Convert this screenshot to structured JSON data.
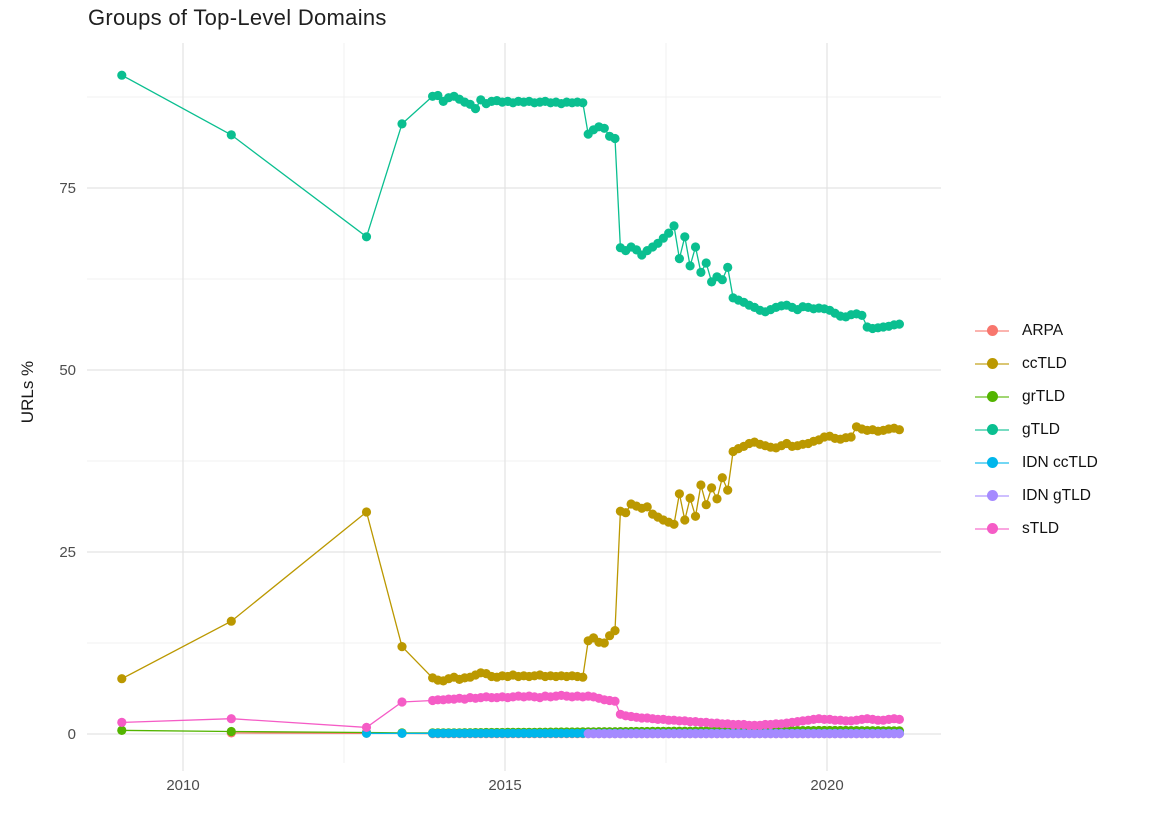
{
  "title": "Groups of Top-Level Domains",
  "y_axis": {
    "label": "URLs %",
    "major_ticks": [
      0,
      25,
      50,
      75
    ],
    "minor_ticks": [
      12.5,
      37.5,
      62.5,
      87.5
    ]
  },
  "x_axis": {
    "major_ticks": [
      2010,
      2015,
      2020
    ],
    "minor_ticks": [
      2012.5,
      2017.5
    ]
  },
  "colors": {
    "major_grid": "#e3e3e3",
    "minor_grid": "#f0f0f0",
    "tick_text": "#4d4d4d",
    "title_text": "#1f1f1f"
  },
  "chart_data": {
    "type": "scatter",
    "title": "Groups of Top-Level Domains",
    "xlabel": "",
    "ylabel": "URLs %",
    "xlim": [
      2008.45,
      2021.8
    ],
    "ylim": [
      -4.5,
      94.8
    ],
    "grid": true,
    "legend_position": "right",
    "x_unit": "year",
    "dense_x": {
      "start": 2013.875,
      "step": 0.083333,
      "count": 88
    },
    "series": [
      {
        "name": "ARPA",
        "color": "#F8766D",
        "sparse": [
          [
            2010.75,
            0.15
          ],
          [
            2012.85,
            0.1
          ],
          [
            2013.4,
            0.1
          ]
        ],
        "dense_const": 0.05,
        "dense_from": 0
      },
      {
        "name": "ccTLD",
        "color": "#BB9800",
        "sparse": [
          [
            2009.05,
            7.6
          ],
          [
            2010.75,
            15.5
          ],
          [
            2012.85,
            30.5
          ],
          [
            2013.4,
            12.0
          ]
        ],
        "dense": [
          7.7,
          7.4,
          7.3,
          7.6,
          7.8,
          7.5,
          7.7,
          7.8,
          8.1,
          8.4,
          8.3,
          7.9,
          7.8,
          8.0,
          7.9,
          8.1,
          7.9,
          8.0,
          7.9,
          8.0,
          8.1,
          7.9,
          8.0,
          7.9,
          8.0,
          7.9,
          8.0,
          7.9,
          7.8,
          12.8,
          13.2,
          12.6,
          12.5,
          13.5,
          14.2,
          30.6,
          30.4,
          31.6,
          31.3,
          31.0,
          31.2,
          30.2,
          29.8,
          29.4,
          29.1,
          28.8,
          33.0,
          29.4,
          32.4,
          29.9,
          34.2,
          31.5,
          33.8,
          32.3,
          35.2,
          33.5,
          38.8,
          39.2,
          39.5,
          39.9,
          40.1,
          39.8,
          39.6,
          39.4,
          39.3,
          39.6,
          39.9,
          39.5,
          39.6,
          39.8,
          39.9,
          40.2,
          40.4,
          40.8,
          40.9,
          40.6,
          40.5,
          40.7,
          40.8,
          42.2,
          41.9,
          41.7,
          41.8,
          41.6,
          41.7,
          41.9,
          42.0,
          41.8
        ]
      },
      {
        "name": "grTLD",
        "color": "#53B400",
        "sparse": [
          [
            2009.05,
            0.5
          ],
          [
            2010.75,
            0.35
          ],
          [
            2012.85,
            0.2
          ],
          [
            2013.4,
            0.15
          ]
        ],
        "dense": [
          0.15,
          0.15,
          0.16,
          0.16,
          0.17,
          0.17,
          0.18,
          0.18,
          0.19,
          0.19,
          0.2,
          0.2,
          0.21,
          0.21,
          0.22,
          0.22,
          0.23,
          0.23,
          0.24,
          0.24,
          0.25,
          0.25,
          0.26,
          0.26,
          0.27,
          0.27,
          0.28,
          0.28,
          0.29,
          0.3,
          0.3,
          0.31,
          0.31,
          0.32,
          0.32,
          0.33,
          0.33,
          0.34,
          0.34,
          0.35,
          0.35,
          0.36,
          0.36,
          0.37,
          0.37,
          0.38,
          0.38,
          0.39,
          0.39,
          0.4,
          0.4,
          0.41,
          0.41,
          0.42,
          0.42,
          0.43,
          0.43,
          0.43,
          0.44,
          0.44,
          0.44,
          0.45,
          0.45,
          0.45,
          0.45,
          0.46,
          0.46,
          0.46,
          0.47,
          0.47,
          0.47,
          0.47,
          0.48,
          0.48,
          0.48,
          0.48,
          0.48,
          0.48,
          0.47,
          0.47,
          0.46,
          0.46,
          0.45,
          0.45,
          0.44,
          0.44,
          0.43,
          0.42
        ]
      },
      {
        "name": "gTLD",
        "color": "#0ABF90",
        "sparse": [
          [
            2009.05,
            90.5
          ],
          [
            2010.75,
            82.3
          ],
          [
            2012.85,
            68.3
          ],
          [
            2013.4,
            83.8
          ]
        ],
        "dense": [
          87.6,
          87.7,
          86.9,
          87.4,
          87.6,
          87.2,
          86.8,
          86.5,
          85.9,
          87.1,
          86.6,
          86.9,
          87.0,
          86.8,
          86.9,
          86.7,
          86.9,
          86.8,
          86.9,
          86.7,
          86.8,
          86.9,
          86.7,
          86.8,
          86.6,
          86.8,
          86.7,
          86.8,
          86.7,
          82.4,
          83.0,
          83.4,
          83.2,
          82.1,
          81.8,
          66.8,
          66.4,
          66.9,
          66.5,
          65.8,
          66.4,
          66.9,
          67.4,
          68.1,
          68.8,
          69.8,
          65.3,
          68.3,
          64.3,
          66.9,
          63.4,
          64.7,
          62.1,
          62.8,
          62.4,
          64.1,
          59.9,
          59.6,
          59.3,
          58.9,
          58.6,
          58.2,
          58.0,
          58.3,
          58.6,
          58.8,
          58.9,
          58.6,
          58.3,
          58.7,
          58.6,
          58.4,
          58.5,
          58.4,
          58.2,
          57.8,
          57.4,
          57.3,
          57.6,
          57.7,
          57.5,
          55.9,
          55.7,
          55.8,
          55.9,
          56.0,
          56.2,
          56.3
        ]
      },
      {
        "name": "IDN ccTLD",
        "color": "#00B6EB",
        "sparse": [
          [
            2012.85,
            0.1
          ],
          [
            2013.4,
            0.08
          ]
        ],
        "dense_const": 0.1,
        "dense_from": 0
      },
      {
        "name": "IDN gTLD",
        "color": "#A58AFF",
        "sparse": [],
        "dense_const": 0.05,
        "dense_from": 29
      },
      {
        "name": "sTLD",
        "color": "#F55CC6",
        "sparse": [
          [
            2009.05,
            1.6
          ],
          [
            2010.75,
            2.1
          ],
          [
            2012.85,
            0.9
          ],
          [
            2013.4,
            4.4
          ]
        ],
        "dense": [
          4.6,
          4.7,
          4.7,
          4.8,
          4.8,
          4.9,
          4.8,
          5.0,
          4.9,
          5.0,
          5.1,
          5.0,
          5.0,
          5.1,
          5.0,
          5.1,
          5.2,
          5.1,
          5.2,
          5.1,
          5.0,
          5.2,
          5.1,
          5.2,
          5.3,
          5.2,
          5.1,
          5.2,
          5.1,
          5.2,
          5.1,
          4.9,
          4.7,
          4.6,
          4.5,
          2.7,
          2.5,
          2.4,
          2.3,
          2.2,
          2.2,
          2.1,
          2.0,
          2.0,
          1.9,
          1.9,
          1.8,
          1.8,
          1.7,
          1.7,
          1.6,
          1.6,
          1.5,
          1.5,
          1.4,
          1.4,
          1.3,
          1.3,
          1.3,
          1.2,
          1.2,
          1.2,
          1.3,
          1.3,
          1.4,
          1.4,
          1.5,
          1.6,
          1.7,
          1.8,
          1.9,
          2.0,
          2.1,
          2.0,
          2.0,
          1.9,
          1.9,
          1.8,
          1.8,
          1.9,
          2.0,
          2.1,
          2.0,
          1.9,
          1.9,
          2.0,
          2.1,
          2.0
        ]
      }
    ],
    "legend_items": [
      "ARPA",
      "ccTLD",
      "grTLD",
      "gTLD",
      "IDN ccTLD",
      "IDN gTLD",
      "sTLD"
    ]
  }
}
